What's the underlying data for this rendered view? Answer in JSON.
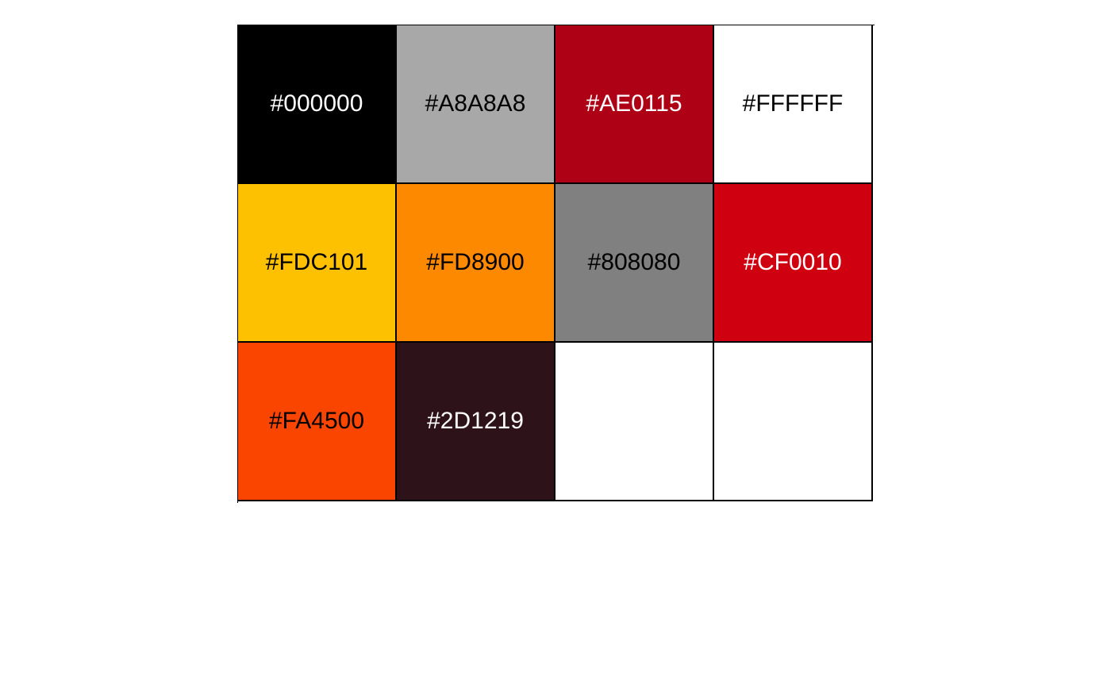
{
  "palette": {
    "swatches": [
      {
        "label": "#000000",
        "color": "#000000",
        "text_color": "#FFFFFF"
      },
      {
        "label": "#A8A8A8",
        "color": "#A8A8A8",
        "text_color": "#000000"
      },
      {
        "label": "#AE0115",
        "color": "#AE0115",
        "text_color": "#FFFFFF"
      },
      {
        "label": "#FFFFFF",
        "color": "#FFFFFF",
        "text_color": "#000000"
      },
      {
        "label": "#FDC101",
        "color": "#FDC101",
        "text_color": "#000000"
      },
      {
        "label": "#FD8900",
        "color": "#FD8900",
        "text_color": "#000000"
      },
      {
        "label": "#808080",
        "color": "#808080",
        "text_color": "#000000"
      },
      {
        "label": "#CF0010",
        "color": "#CF0010",
        "text_color": "#FFFFFF"
      },
      {
        "label": "#FA4500",
        "color": "#FA4500",
        "text_color": "#000000"
      },
      {
        "label": "#2D1219",
        "color": "#2D1219",
        "text_color": "#FFFFFF"
      },
      {
        "label": "",
        "color": "#FFFFFF",
        "text_color": "#000000"
      },
      {
        "label": "",
        "color": "#FFFFFF",
        "text_color": "#000000"
      }
    ]
  }
}
